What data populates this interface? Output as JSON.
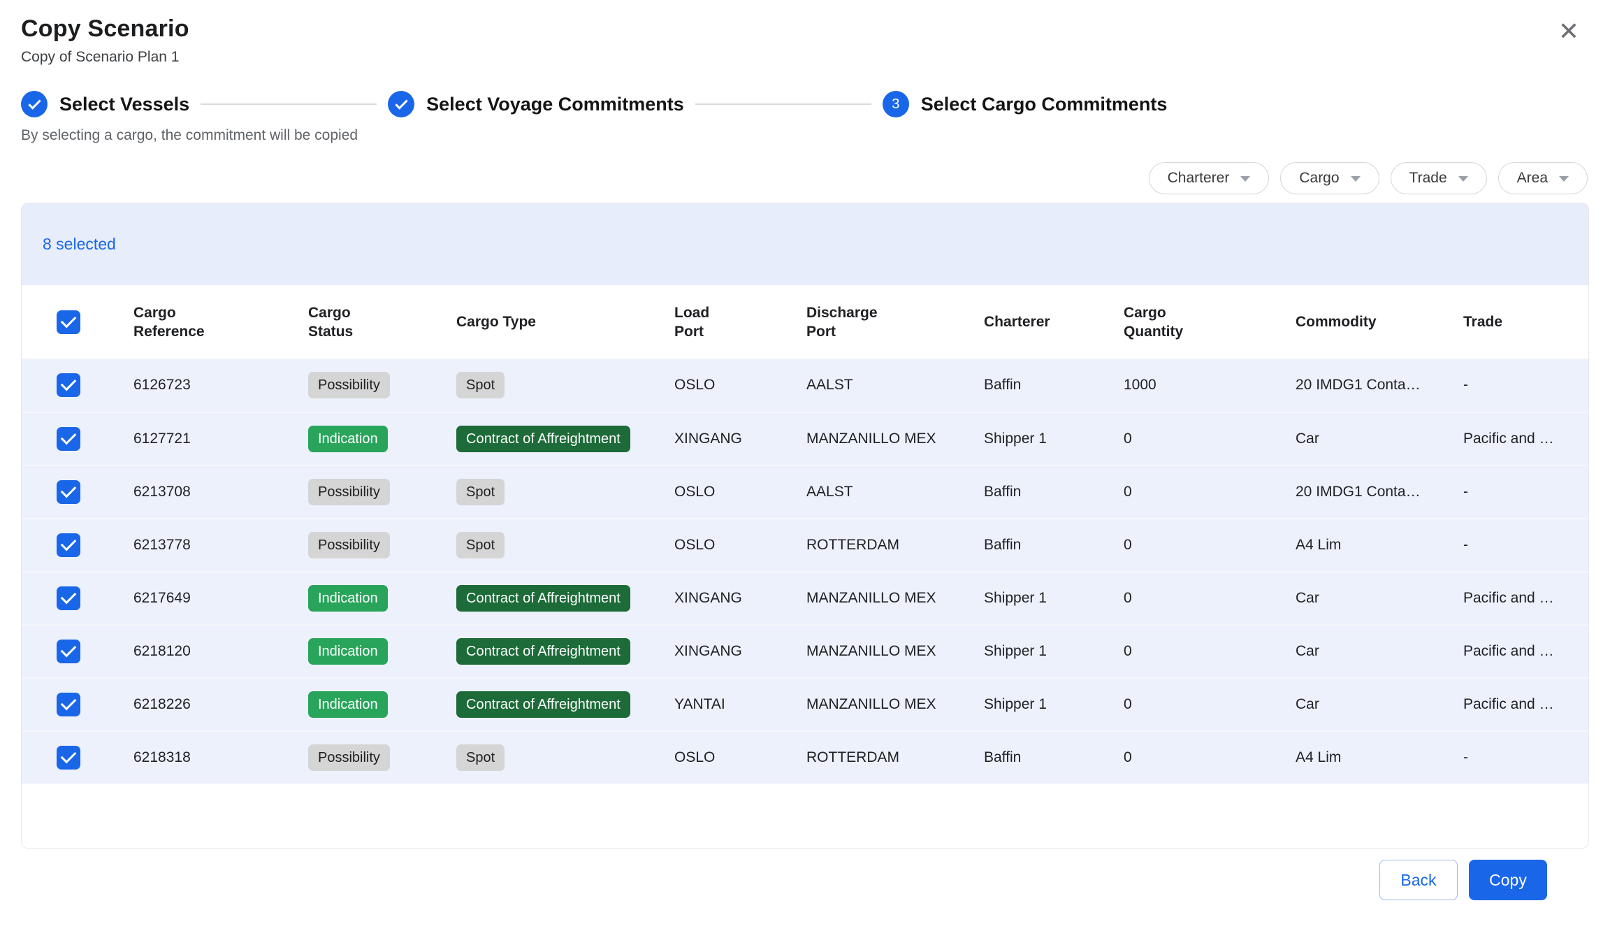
{
  "dialog": {
    "title": "Copy Scenario",
    "subtitle": "Copy of Scenario Plan 1",
    "close_icon": "✕",
    "helper_text": "By selecting a cargo, the commitment will be copied",
    "selected_count": "8 selected",
    "back_label": "Back",
    "copy_label": "Copy"
  },
  "stepper": {
    "steps": [
      {
        "label": "Select Vessels",
        "state": "complete"
      },
      {
        "label": "Select Voyage Commitments",
        "state": "complete"
      },
      {
        "label": "Select Cargo Commitments",
        "state": "current",
        "number": "3"
      }
    ]
  },
  "filters": [
    {
      "label": "Charterer"
    },
    {
      "label": "Cargo"
    },
    {
      "label": "Trade"
    },
    {
      "label": "Area"
    }
  ],
  "table": {
    "header_checkbox_checked": true,
    "columns": [
      "Cargo\nReference",
      "Cargo\nStatus",
      "Cargo Type",
      "Load\nPort",
      "Discharge\nPort",
      "Charterer",
      "Cargo\nQuantity",
      "Commodity",
      "Trade"
    ],
    "rows": [
      {
        "selected": true,
        "reference": "6126723",
        "status": {
          "label": "Possibility",
          "color": "gray"
        },
        "cargo_type": {
          "label": "Spot",
          "color": "gray"
        },
        "load_port": "OSLO",
        "discharge_port": "AALST",
        "charterer": "Baffin",
        "cargo_quantity": "1000",
        "commodity": "20 IMDG1 Conta…",
        "trade": "-"
      },
      {
        "selected": true,
        "reference": "6127721",
        "status": {
          "label": "Indication",
          "color": "green"
        },
        "cargo_type": {
          "label": "Contract of Affreightment",
          "color": "dark-green"
        },
        "load_port": "XINGANG",
        "discharge_port": "MANZANILLO MEX",
        "charterer": "Shipper 1",
        "cargo_quantity": "0",
        "commodity": "Car",
        "trade": "Pacific and So…"
      },
      {
        "selected": true,
        "reference": "6213708",
        "status": {
          "label": "Possibility",
          "color": "gray"
        },
        "cargo_type": {
          "label": "Spot",
          "color": "gray"
        },
        "load_port": "OSLO",
        "discharge_port": "AALST",
        "charterer": "Baffin",
        "cargo_quantity": "0",
        "commodity": "20 IMDG1 Conta…",
        "trade": "-"
      },
      {
        "selected": true,
        "reference": "6213778",
        "status": {
          "label": "Possibility",
          "color": "gray"
        },
        "cargo_type": {
          "label": "Spot",
          "color": "gray"
        },
        "load_port": "OSLO",
        "discharge_port": "ROTTERDAM",
        "charterer": "Baffin",
        "cargo_quantity": "0",
        "commodity": "A4 Lim",
        "trade": "-"
      },
      {
        "selected": true,
        "reference": "6217649",
        "status": {
          "label": "Indication",
          "color": "green"
        },
        "cargo_type": {
          "label": "Contract of Affreightment",
          "color": "dark-green"
        },
        "load_port": "XINGANG",
        "discharge_port": "MANZANILLO MEX",
        "charterer": "Shipper 1",
        "cargo_quantity": "0",
        "commodity": "Car",
        "trade": "Pacific and So…"
      },
      {
        "selected": true,
        "reference": "6218120",
        "status": {
          "label": "Indication",
          "color": "green"
        },
        "cargo_type": {
          "label": "Contract of Affreightment",
          "color": "dark-green"
        },
        "load_port": "XINGANG",
        "discharge_port": "MANZANILLO MEX",
        "charterer": "Shipper 1",
        "cargo_quantity": "0",
        "commodity": "Car",
        "trade": "Pacific and So…"
      },
      {
        "selected": true,
        "reference": "6218226",
        "status": {
          "label": "Indication",
          "color": "green"
        },
        "cargo_type": {
          "label": "Contract of Affreightment",
          "color": "dark-green"
        },
        "load_port": "YANTAI",
        "discharge_port": "MANZANILLO MEX",
        "charterer": "Shipper 1",
        "cargo_quantity": "0",
        "commodity": "Car",
        "trade": "Pacific and So…"
      },
      {
        "selected": true,
        "reference": "6218318",
        "status": {
          "label": "Possibility",
          "color": "gray"
        },
        "cargo_type": {
          "label": "Spot",
          "color": "gray"
        },
        "load_port": "OSLO",
        "discharge_port": "ROTTERDAM",
        "charterer": "Baffin",
        "cargo_quantity": "0",
        "commodity": "A4 Lim",
        "trade": "-"
      }
    ]
  },
  "colors": {
    "accent_blue": "#1a66e8",
    "banner_background": "#e8edfb",
    "row_background": "#edf1fc",
    "badge_gray": "#d5d5d5",
    "badge_green": "#29a55b",
    "badge_dark_green": "#1c6b38"
  }
}
